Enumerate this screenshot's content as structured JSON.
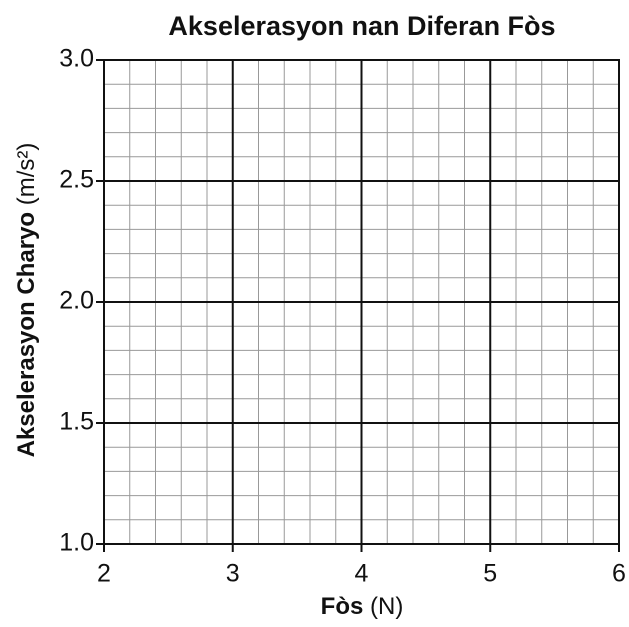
{
  "chart_data": {
    "type": "line",
    "title": "Akselerasyon nan Diferan Fòs",
    "xlabel": "Fòs",
    "xlabel_unit": "(N)",
    "ylabel": "Akselerasyon Charyo",
    "ylabel_unit": "(m/s²)",
    "xlim": [
      2,
      6
    ],
    "xticks": [
      2,
      3,
      4,
      5,
      6
    ],
    "ylim": [
      1,
      3
    ],
    "yticks": [
      {
        "value": 1,
        "label": "1.0"
      },
      1.5,
      {
        "value": 2,
        "label": "2.0"
      },
      2.5,
      {
        "value": 3,
        "label": "3.0"
      }
    ],
    "grid": true,
    "minor_divisions": 5,
    "series": []
  }
}
